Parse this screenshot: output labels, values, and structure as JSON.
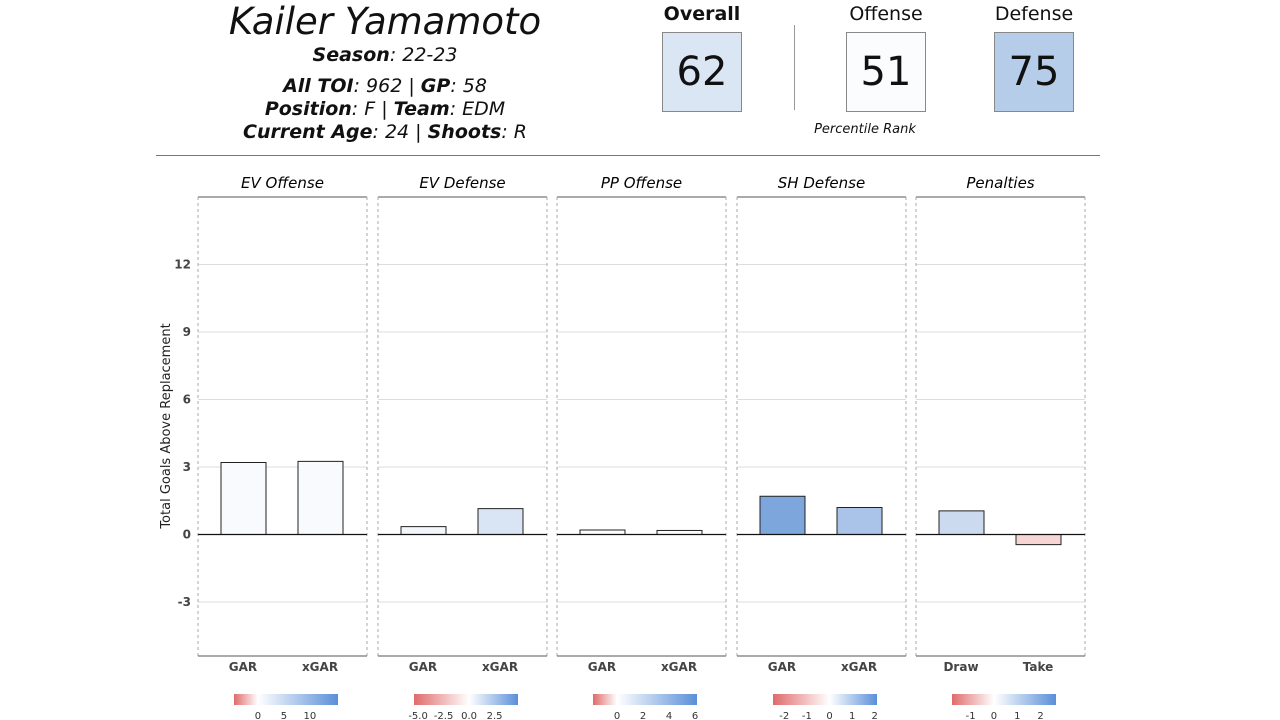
{
  "player": {
    "name": "Kailer Yamamoto",
    "season_label": "Season",
    "season": ": 22-23",
    "toi_label": "All TOI",
    "toi": ": 962 | ",
    "gp_label": "GP",
    "gp": ": 58",
    "pos_label": "Position",
    "pos": ": F | ",
    "team_label": "Team",
    "team": ": EDM",
    "age_label": "Current Age",
    "age": ": 24 | ",
    "shoots_label": "Shoots",
    "shoots": ": R"
  },
  "ranks": {
    "overall_label": "Overall",
    "overall": "62",
    "overall_color": "#dae6f4",
    "offense_label": "Offense",
    "offense": "51",
    "offense_color": "#fbfcfe",
    "defense_label": "Defense",
    "defense": "75",
    "defense_color": "#b5cde9",
    "caption": "Percentile Rank"
  },
  "chart_data": {
    "type": "bar",
    "ylabel": "Total Goals Above Replacement",
    "ylim": [
      -5.4,
      15
    ],
    "yticks": [
      -3,
      0,
      3,
      6,
      9,
      12
    ],
    "grid": true,
    "panels": [
      {
        "title": "EV Offense",
        "categories": [
          "GAR",
          "xGAR"
        ],
        "values": [
          3.2,
          3.25
        ],
        "colors": [
          "#f8fafd",
          "#f8fafd"
        ],
        "legend": {
          "min": -4.6,
          "max": 15.4,
          "ticks": [
            "0",
            "5",
            "10"
          ],
          "tickvals": [
            0,
            5,
            10
          ]
        }
      },
      {
        "title": "EV Defense",
        "categories": [
          "GAR",
          "xGAR"
        ],
        "values": [
          0.35,
          1.15
        ],
        "colors": [
          "#f3f6fb",
          "#d9e4f4"
        ],
        "legend": {
          "min": -5.4,
          "max": 4.8,
          "ticks": [
            "-5.0",
            "-2.5",
            "0.0",
            "2.5"
          ],
          "tickvals": [
            -5,
            -2.5,
            0,
            2.5
          ]
        }
      },
      {
        "title": "PP Offense",
        "categories": [
          "GAR",
          "xGAR"
        ],
        "values": [
          0.2,
          0.18
        ],
        "colors": [
          "#fcfdfe",
          "#fbfcfe"
        ],
        "legend": {
          "min": -1.85,
          "max": 6.15,
          "ticks": [
            "0",
            "2",
            "4",
            "6"
          ],
          "tickvals": [
            0,
            2,
            4,
            6
          ]
        }
      },
      {
        "title": "SH Defense",
        "categories": [
          "GAR",
          "xGAR"
        ],
        "values": [
          1.7,
          1.2
        ],
        "colors": [
          "#7da6dc",
          "#a9c3e9"
        ],
        "legend": {
          "min": -2.5,
          "max": 2.1,
          "ticks": [
            "-2",
            "-1",
            "0",
            "1",
            "2"
          ],
          "tickvals": [
            -2,
            -1,
            0,
            1,
            2
          ]
        }
      },
      {
        "title": "Penalties",
        "categories": [
          "Draw",
          "Take"
        ],
        "values": [
          1.05,
          -0.45
        ],
        "colors": [
          "#ccdaf0",
          "#f8d5d5"
        ],
        "legend": {
          "min": -1.8,
          "max": 2.66,
          "ticks": [
            "-1",
            "0",
            "1",
            "2"
          ],
          "tickvals": [
            -1,
            0,
            1,
            2
          ]
        }
      }
    ]
  }
}
